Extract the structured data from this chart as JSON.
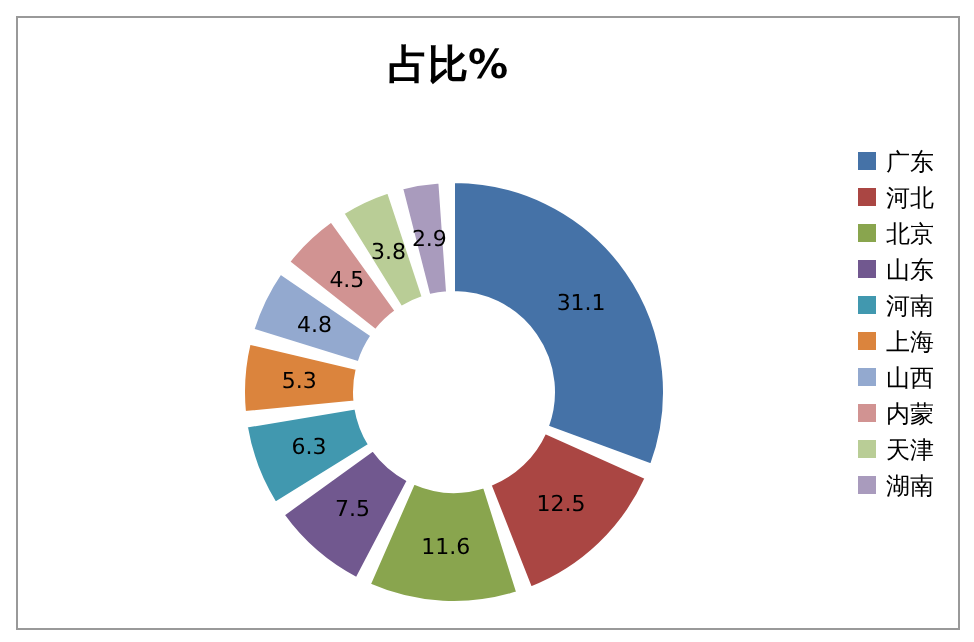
{
  "chart_data": {
    "type": "donut",
    "title": "占比%",
    "categories": [
      "广东",
      "河北",
      "北京",
      "山东",
      "河南",
      "上海",
      "山西",
      "内蒙",
      "天津",
      "湖南"
    ],
    "values": [
      31.1,
      12.5,
      11.6,
      7.5,
      6.3,
      5.3,
      4.8,
      4.5,
      3.8,
      2.9
    ],
    "colors": [
      "#4572a7",
      "#aa4643",
      "#89a54e",
      "#71588f",
      "#4198af",
      "#db843d",
      "#93a9cf",
      "#d19392",
      "#b9cd96",
      "#a99bbd"
    ],
    "data_labels": true,
    "legend": "right"
  }
}
